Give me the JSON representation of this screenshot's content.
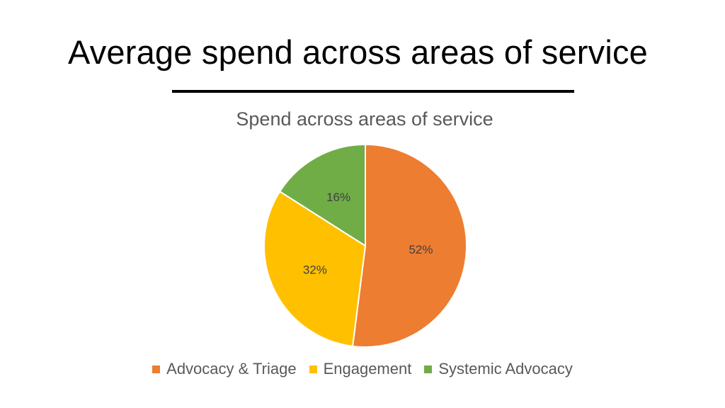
{
  "slide": {
    "title": "Average spend across areas of service"
  },
  "chart_data": {
    "type": "pie",
    "title": "Spend across areas of service",
    "categories": [
      "Advocacy & Triage",
      "Engagement",
      "Systemic Advocacy"
    ],
    "values": [
      52,
      32,
      16
    ],
    "data_labels": [
      "52%",
      "32%",
      "16%"
    ],
    "colors": [
      "#ED7D31",
      "#FFC000",
      "#70AD47"
    ],
    "legend_position": "bottom"
  }
}
